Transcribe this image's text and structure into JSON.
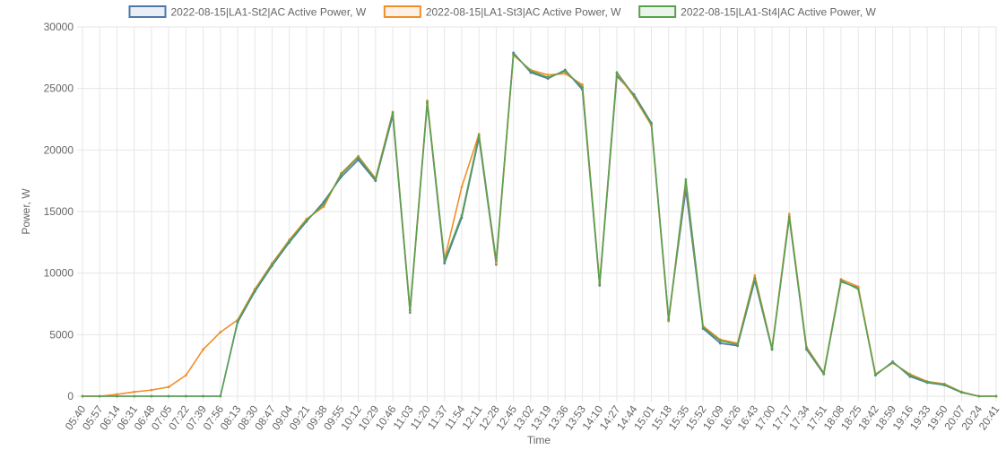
{
  "chart_data": {
    "type": "line",
    "xlabel": "Time",
    "ylabel": "Power, W",
    "ylim": [
      0,
      30000
    ],
    "y_ticks": [
      0,
      5000,
      10000,
      15000,
      20000,
      25000,
      30000
    ],
    "grid": true,
    "legend_position": "top-center",
    "x": [
      "05:40",
      "05:57",
      "06:14",
      "06:31",
      "06:48",
      "07:05",
      "07:22",
      "07:39",
      "07:56",
      "08:13",
      "08:30",
      "08:47",
      "09:04",
      "09:21",
      "09:38",
      "09:55",
      "10:12",
      "10:29",
      "10:46",
      "11:03",
      "11:20",
      "11:37",
      "11:54",
      "12:11",
      "12:28",
      "12:45",
      "13:02",
      "13:19",
      "13:36",
      "13:53",
      "14:10",
      "14:27",
      "14:44",
      "15:01",
      "15:18",
      "15:35",
      "15:52",
      "16:09",
      "16:26",
      "16:43",
      "17:00",
      "17:17",
      "17:34",
      "17:51",
      "18:08",
      "18:25",
      "18:42",
      "18:59",
      "19:16",
      "19:33",
      "19:50",
      "20:07",
      "20:24",
      "20:41"
    ],
    "series": [
      {
        "name": "2022-08-15|LA1-St2|AC Active Power, W",
        "color": "#4e79a7",
        "values": [
          0,
          0,
          0,
          0,
          0,
          0,
          0,
          0,
          0,
          6000,
          8500,
          10600,
          12500,
          14200,
          15800,
          17800,
          19200,
          17500,
          22800,
          6800,
          23800,
          10800,
          14500,
          21000,
          10700,
          27900,
          26300,
          25800,
          26500,
          24900,
          9000,
          26000,
          24500,
          22200,
          6300,
          16800,
          5500,
          4300,
          4100,
          9400,
          3800,
          14500,
          3800,
          1800,
          9300,
          8800,
          1700,
          2800,
          1600,
          1100,
          900,
          300,
          0,
          0
        ]
      },
      {
        "name": "2022-08-15|LA1-St3|AC Active Power, W",
        "color": "#f28e2b",
        "values": [
          0,
          0,
          150,
          350,
          500,
          750,
          1700,
          3800,
          5200,
          6200,
          8700,
          10800,
          12700,
          14400,
          15400,
          18100,
          19500,
          17700,
          23100,
          6900,
          24000,
          11100,
          17000,
          21300,
          10800,
          27700,
          26500,
          26100,
          26200,
          25300,
          9200,
          26200,
          24300,
          22000,
          6100,
          17400,
          5700,
          4600,
          4300,
          9800,
          3900,
          14800,
          4000,
          1900,
          9500,
          8900,
          1800,
          2700,
          1800,
          1200,
          1000,
          350,
          0,
          0
        ]
      },
      {
        "name": "2022-08-15|LA1-St4|AC Active Power, W",
        "color": "#59a14f",
        "values": [
          0,
          0,
          0,
          0,
          0,
          0,
          0,
          0,
          0,
          6100,
          8600,
          10700,
          12600,
          14300,
          15600,
          18000,
          19400,
          17600,
          23000,
          7000,
          23900,
          11000,
          14700,
          21200,
          11000,
          27800,
          26400,
          25900,
          26400,
          25100,
          9100,
          26300,
          24400,
          22100,
          6200,
          17600,
          5600,
          4500,
          4200,
          9600,
          3850,
          14600,
          3900,
          1850,
          9400,
          8700,
          1750,
          2750,
          1700,
          1150,
          950,
          320,
          0,
          0
        ]
      }
    ]
  }
}
